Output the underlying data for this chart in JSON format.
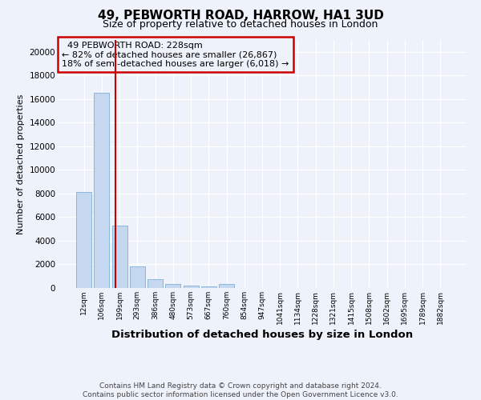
{
  "title": "49, PEBWORTH ROAD, HARROW, HA1 3UD",
  "subtitle": "Size of property relative to detached houses in London",
  "xlabel": "Distribution of detached houses by size in London",
  "ylabel": "Number of detached properties",
  "bar_color": "#c5d8f0",
  "bar_edge_color": "#7eb0d9",
  "vline_color": "#cc0000",
  "vline_x": 1.75,
  "annotation_text": "  49 PEBWORTH ROAD: 228sqm\n← 82% of detached houses are smaller (26,867)\n18% of semi-detached houses are larger (6,018) →",
  "categories": [
    "12sqm",
    "106sqm",
    "199sqm",
    "293sqm",
    "386sqm",
    "480sqm",
    "573sqm",
    "667sqm",
    "760sqm",
    "854sqm",
    "947sqm",
    "1041sqm",
    "1134sqm",
    "1228sqm",
    "1321sqm",
    "1415sqm",
    "1508sqm",
    "1602sqm",
    "1695sqm",
    "1789sqm",
    "1882sqm"
  ],
  "values": [
    8100,
    16500,
    5300,
    1850,
    750,
    350,
    200,
    130,
    350,
    0,
    0,
    0,
    0,
    0,
    0,
    0,
    0,
    0,
    0,
    0,
    0
  ],
  "ylim": [
    0,
    21000
  ],
  "yticks": [
    0,
    2000,
    4000,
    6000,
    8000,
    10000,
    12000,
    14000,
    16000,
    18000,
    20000
  ],
  "bg_color": "#eef2fa",
  "plot_bg_color": "#eef2fa",
  "grid_color": "#ffffff",
  "footer": "Contains HM Land Registry data © Crown copyright and database right 2024.\nContains public sector information licensed under the Open Government Licence v3.0.",
  "title_fontsize": 11,
  "subtitle_fontsize": 9,
  "xlabel_fontsize": 9.5,
  "ylabel_fontsize": 8,
  "annotation_fontsize": 8,
  "footer_fontsize": 6.5
}
